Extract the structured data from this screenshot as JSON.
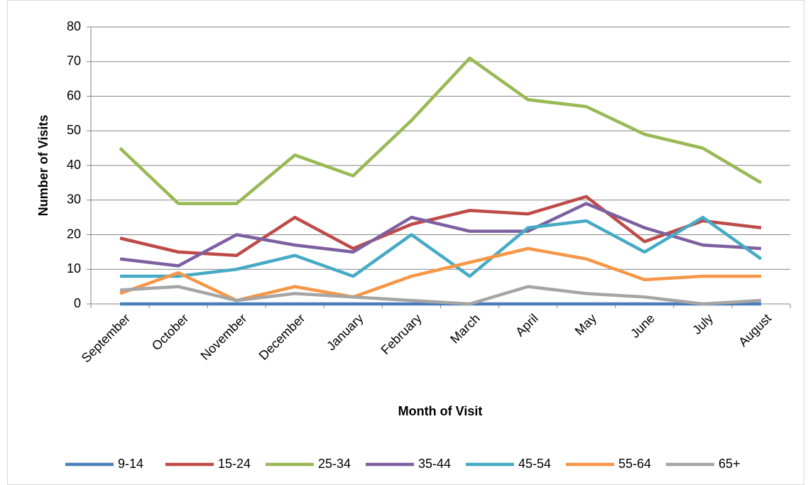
{
  "chart_data": {
    "type": "line",
    "categories": [
      "September",
      "October",
      "November",
      "December",
      "January",
      "February",
      "March",
      "April",
      "May",
      "June",
      "July",
      "August"
    ],
    "series": [
      {
        "name": "9-14",
        "color": "#4a7ebb",
        "values": [
          0,
          0,
          0,
          0,
          0,
          0,
          0,
          0,
          0,
          0,
          0,
          0
        ]
      },
      {
        "name": "15-24",
        "color": "#be4b48",
        "values": [
          19,
          15,
          14,
          25,
          16,
          23,
          27,
          26,
          31,
          18,
          24,
          22
        ]
      },
      {
        "name": "25-34",
        "color": "#98b954",
        "values": [
          45,
          29,
          29,
          43,
          37,
          53,
          71,
          59,
          57,
          49,
          45,
          35
        ]
      },
      {
        "name": "35-44",
        "color": "#7d60a0",
        "values": [
          13,
          11,
          20,
          17,
          15,
          25,
          21,
          21,
          29,
          22,
          17,
          16
        ]
      },
      {
        "name": "45-54",
        "color": "#46aac5",
        "values": [
          8,
          8,
          10,
          14,
          8,
          20,
          8,
          22,
          24,
          15,
          25,
          13
        ]
      },
      {
        "name": "55-64",
        "color": "#f79646",
        "values": [
          3,
          9,
          1,
          5,
          2,
          8,
          12,
          16,
          13,
          7,
          8,
          8
        ]
      },
      {
        "name": "65+",
        "color": "#a5a5a5",
        "values": [
          4,
          5,
          1,
          3,
          2,
          1,
          0,
          5,
          3,
          2,
          0,
          1
        ]
      }
    ],
    "xlabel": "Month of Visit",
    "ylabel": "Number of Visits",
    "ylim": [
      0,
      80
    ],
    "yticks": [
      0,
      10,
      20,
      30,
      40,
      50,
      60,
      70,
      80
    ],
    "grid": true,
    "legend": "bottom"
  }
}
